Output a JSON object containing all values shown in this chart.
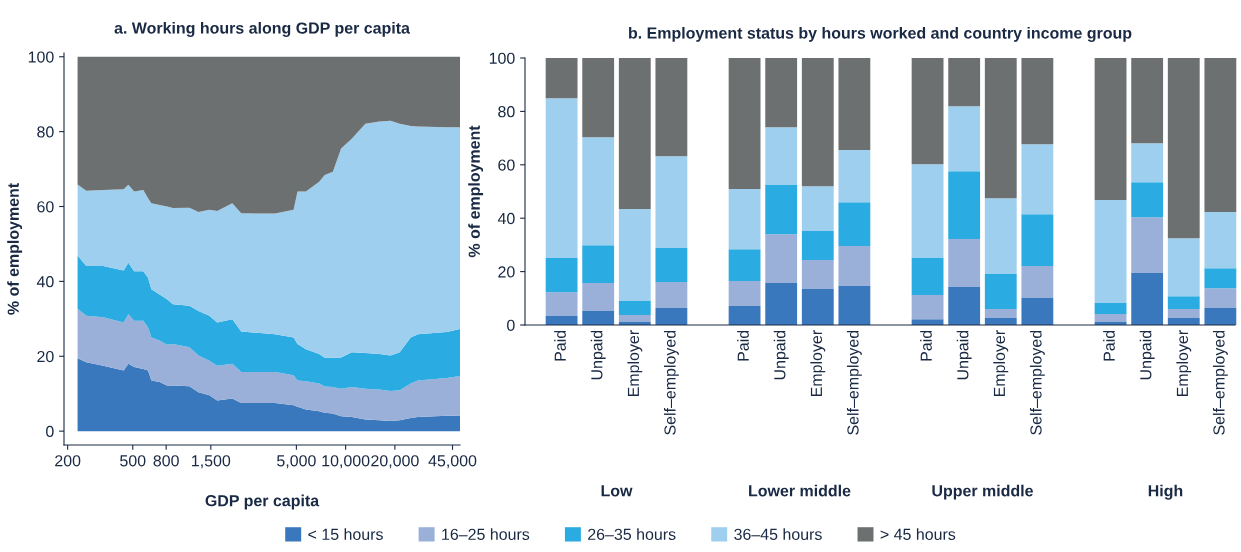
{
  "chart_data": [
    {
      "type": "area",
      "stacked": true,
      "title": "a. Working hours along GDP per capita",
      "xlabel": "GDP per capita",
      "ylabel": "% of employment",
      "x": [
        230,
        260,
        330,
        440,
        470,
        510,
        580,
        620,
        650,
        730,
        810,
        880,
        1110,
        1260,
        1470,
        1640,
        2030,
        2300,
        3700,
        4810,
        5080,
        5720,
        6890,
        7450,
        8360,
        9380,
        10900,
        13200,
        16100,
        18800,
        21400,
        25000,
        27600,
        41500,
        50000
      ],
      "log": "x",
      "xlim": [
        190,
        50000
      ],
      "xticks": [
        200,
        500,
        800,
        {
          "value": 1500,
          "label": "1,500"
        },
        {
          "value": 5000,
          "label": "5,000"
        },
        {
          "value": 10000,
          "label": "10,000"
        },
        {
          "value": 20000,
          "label": "20,000"
        },
        {
          "value": 45000,
          "label": "45,000"
        }
      ],
      "ylim": [
        -3.7,
        101
      ],
      "yticks": [
        0,
        20,
        40,
        60,
        80,
        100
      ],
      "grid": false,
      "legend": false,
      "series": [
        {
          "color": "#3a78bd",
          "values": [
            19.5,
            18.4,
            17.5,
            16.2,
            18.0,
            17.1,
            16.6,
            16.2,
            13.5,
            13.1,
            12.2,
            12.2,
            12.0,
            10.4,
            9.6,
            8.2,
            8.7,
            7.5,
            7.5,
            6.9,
            6.5,
            5.8,
            5.3,
            4.9,
            4.7,
            4.0,
            3.8,
            3.1,
            2.9,
            2.7,
            2.9,
            3.5,
            3.8,
            4.1,
            4.2
          ]
        },
        {
          "color": "#9ab0d8",
          "values": [
            13.2,
            12.4,
            12.9,
            12.8,
            13.2,
            12.4,
            12.9,
            11.5,
            11.5,
            11.1,
            10.9,
            11.1,
            10.4,
            9.8,
            9.2,
            9.3,
            9.3,
            8.3,
            8.3,
            8.0,
            7.0,
            7.5,
            7.4,
            7.0,
            7.1,
            7.3,
            8.0,
            8.2,
            8.2,
            8.0,
            8.0,
            9.2,
            9.7,
            10.1,
            10.5
          ]
        },
        {
          "color": "#2aabe2",
          "values": [
            14.2,
            13.3,
            13.7,
            13.9,
            13.8,
            13.2,
            13.2,
            13.3,
            12.9,
            12.3,
            12.1,
            10.6,
            11.1,
            11.9,
            12.0,
            11.5,
            11.9,
            10.8,
            10.1,
            10.1,
            9.8,
            8.6,
            7.9,
            7.7,
            7.8,
            8.4,
            9.3,
            9.6,
            9.5,
            9.5,
            10.2,
            12.3,
            12.4,
            12.3,
            12.6
          ]
        },
        {
          "color": "#9fcfee",
          "values": [
            19.0,
            20.1,
            20.3,
            21.7,
            20.8,
            21.3,
            21.7,
            21.2,
            23.0,
            23.9,
            24.8,
            25.7,
            26.2,
            26.4,
            28.3,
            29.8,
            31.0,
            31.6,
            32.2,
            34.1,
            40.7,
            42.1,
            46.0,
            48.8,
            49.7,
            55.8,
            57.0,
            61.2,
            62.1,
            62.7,
            61.0,
            56.5,
            55.5,
            54.7,
            53.9
          ]
        },
        {
          "color": "#6d7070",
          "values": [
            34.1,
            35.8,
            35.6,
            35.4,
            34.2,
            36.0,
            35.6,
            37.8,
            39.1,
            39.6,
            40.0,
            40.4,
            40.3,
            41.5,
            40.9,
            41.2,
            39.1,
            41.8,
            41.9,
            40.9,
            36.0,
            36.0,
            33.4,
            31.6,
            30.7,
            24.5,
            21.9,
            17.9,
            17.3,
            17.1,
            17.9,
            18.5,
            18.6,
            18.8,
            18.8
          ]
        }
      ]
    },
    {
      "type": "bar",
      "stacked": true,
      "title": "b. Employment status by hours worked and country income group",
      "ylabel": "% of employment",
      "categories": [
        "Paid",
        "Unpaid",
        "Employer",
        "Self–employed",
        null,
        "Paid",
        "Unpaid",
        "Employer",
        "Self–employed",
        null,
        "Paid",
        "Unpaid",
        "Employer",
        "Self–employed",
        null,
        "Paid",
        "Unpaid",
        "Employer",
        "Self–employed"
      ],
      "annotations": [
        "Low",
        "Lower middle",
        "Upper middle",
        "High"
      ],
      "ylim": [
        0,
        100
      ],
      "yticks": [
        0,
        20,
        40,
        60,
        80,
        100
      ],
      "grid": false,
      "legend": "bottom",
      "series": [
        {
          "name": "< 15 hours",
          "color": "#3a78bd",
          "values": [
            3.4,
            5.2,
            1.1,
            6.4,
            null,
            7.1,
            15.7,
            13.5,
            14.6,
            null,
            2.2,
            14.2,
            2.6,
            10.1,
            null,
            1.1,
            19.5,
            2.6,
            6.4
          ]
        },
        {
          "name": "16–25 hours",
          "color": "#9ab0d8",
          "values": [
            8.9,
            10.5,
            2.6,
            9.7,
            null,
            9.4,
            18.3,
            10.8,
            15.0,
            null,
            9.0,
            18.0,
            3.4,
            12.0,
            null,
            3.0,
            20.9,
            3.4,
            7.4
          ]
        },
        {
          "name": "26–35 hours",
          "color": "#2aabe2",
          "values": [
            12.8,
            14.2,
            5.3,
            12.7,
            null,
            11.9,
            18.4,
            10.9,
            16.4,
            null,
            14.1,
            25.4,
            13.1,
            19.4,
            null,
            4.1,
            13.1,
            4.8,
            7.5
          ]
        },
        {
          "name": "36–45 hours",
          "color": "#9fcfee",
          "values": [
            59.8,
            40.4,
            34.4,
            34.4,
            null,
            22.5,
            21.7,
            16.8,
            19.5,
            null,
            34.9,
            24.3,
            28.4,
            26.2,
            null,
            38.6,
            14.6,
            21.7,
            21.0
          ]
        },
        {
          "name": "> 45 hours",
          "color": "#6d7070",
          "values": [
            15.1,
            29.7,
            56.6,
            36.8,
            null,
            49.1,
            25.9,
            48.0,
            34.5,
            null,
            39.8,
            18.1,
            52.5,
            32.3,
            null,
            53.2,
            31.9,
            67.5,
            57.7
          ]
        }
      ]
    }
  ]
}
